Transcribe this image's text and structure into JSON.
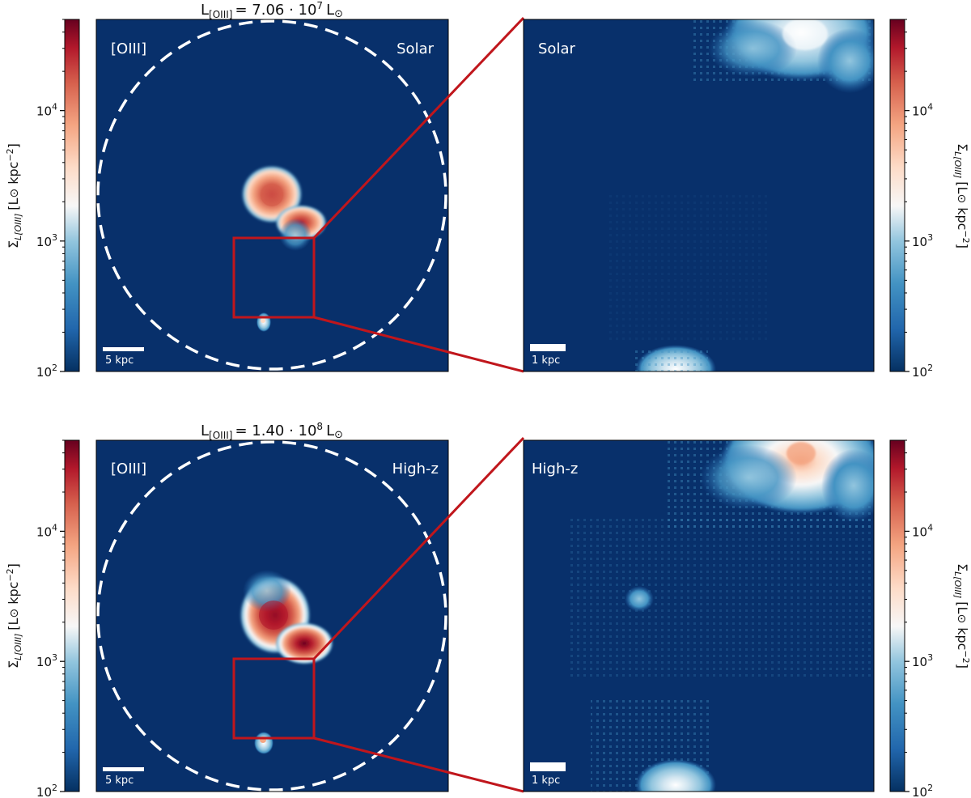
{
  "chart_data": [
    {
      "type": "heatmap",
      "panel": "top-left",
      "title_prefix": "L",
      "title_sub": "[OIII]",
      "title_value": "= 7.06 · 10",
      "title_exp": "7",
      "title_unit": "L",
      "label_left": "[OIII]",
      "label_right": "Solar",
      "scalebar_label": "5 kpc",
      "colorbar": {
        "side": "left",
        "scale": "log",
        "range": [
          100,
          50000
        ],
        "tick_labels": [
          "10",
          "10",
          "10"
        ],
        "tick_exps": [
          "2",
          "3",
          "4"
        ],
        "tick_values": [
          100,
          1000,
          10000
        ],
        "label_sigma": "Σ",
        "label_sub": "L[OIII]",
        "label_unit": "[L",
        "label_unit2": " kpc",
        "label_unit_exp": "−2",
        "label_close": "]"
      },
      "dashed_circle": true,
      "zoom_box": true
    },
    {
      "type": "heatmap",
      "panel": "top-right",
      "label_left": "Solar",
      "scalebar_label": "1 kpc",
      "colorbar": {
        "side": "right",
        "scale": "log",
        "range": [
          100,
          50000
        ],
        "tick_labels": [
          "10",
          "10",
          "10"
        ],
        "tick_exps": [
          "2",
          "3",
          "4"
        ],
        "tick_values": [
          100,
          1000,
          10000
        ]
      }
    },
    {
      "type": "heatmap",
      "panel": "bottom-left",
      "title_prefix": "L",
      "title_sub": "[OIII]",
      "title_value": "= 1.40 · 10",
      "title_exp": "8",
      "title_unit": "L",
      "label_left": "[OIII]",
      "label_right": "High-z",
      "scalebar_label": "5 kpc",
      "colorbar": {
        "side": "left",
        "scale": "log",
        "range": [
          100,
          50000
        ],
        "tick_labels": [
          "10",
          "10",
          "10"
        ],
        "tick_exps": [
          "2",
          "3",
          "4"
        ],
        "tick_values": [
          100,
          1000,
          10000
        ]
      },
      "dashed_circle": true,
      "zoom_box": true
    },
    {
      "type": "heatmap",
      "panel": "bottom-right",
      "label_left": "High-z",
      "scalebar_label": "1 kpc",
      "colorbar": {
        "side": "right",
        "scale": "log",
        "range": [
          100,
          50000
        ],
        "tick_labels": [
          "10",
          "10",
          "10"
        ],
        "tick_exps": [
          "2",
          "3",
          "4"
        ],
        "tick_values": [
          100,
          1000,
          10000
        ]
      }
    }
  ],
  "colors": {
    "background_map": "#08306b",
    "zoom_box": "#c0161c",
    "colormap": "RdBu_r"
  }
}
